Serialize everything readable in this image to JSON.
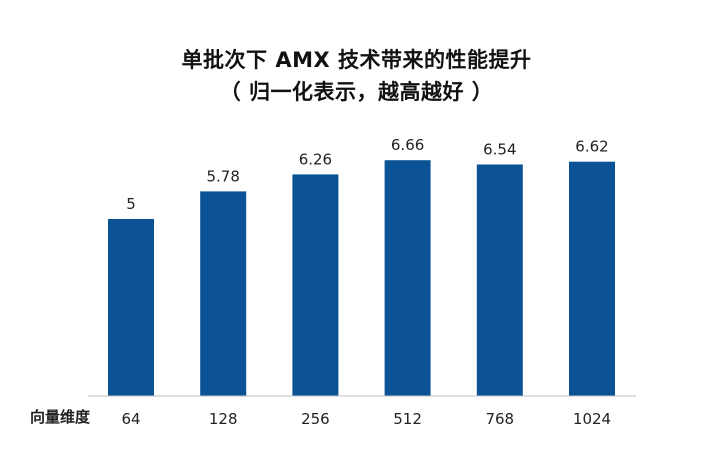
{
  "chart_data": {
    "type": "bar",
    "title": "单批次下 AMX 技术带来的性能提升",
    "subtitle": "（ 归一化表示，越高越好 ）",
    "xlabel": "向量维度",
    "ylabel": "",
    "categories": [
      "64",
      "128",
      "256",
      "512",
      "768",
      "1024"
    ],
    "values": [
      5,
      5.78,
      6.26,
      6.66,
      6.54,
      6.62
    ],
    "value_labels": [
      "5",
      "5.78",
      "6.26",
      "6.66",
      "6.54",
      "6.62"
    ],
    "ylim": [
      0,
      7
    ],
    "grid": false,
    "legend": "none",
    "bar_color": "#0B5394",
    "axis_color": "#BFBFBF"
  }
}
